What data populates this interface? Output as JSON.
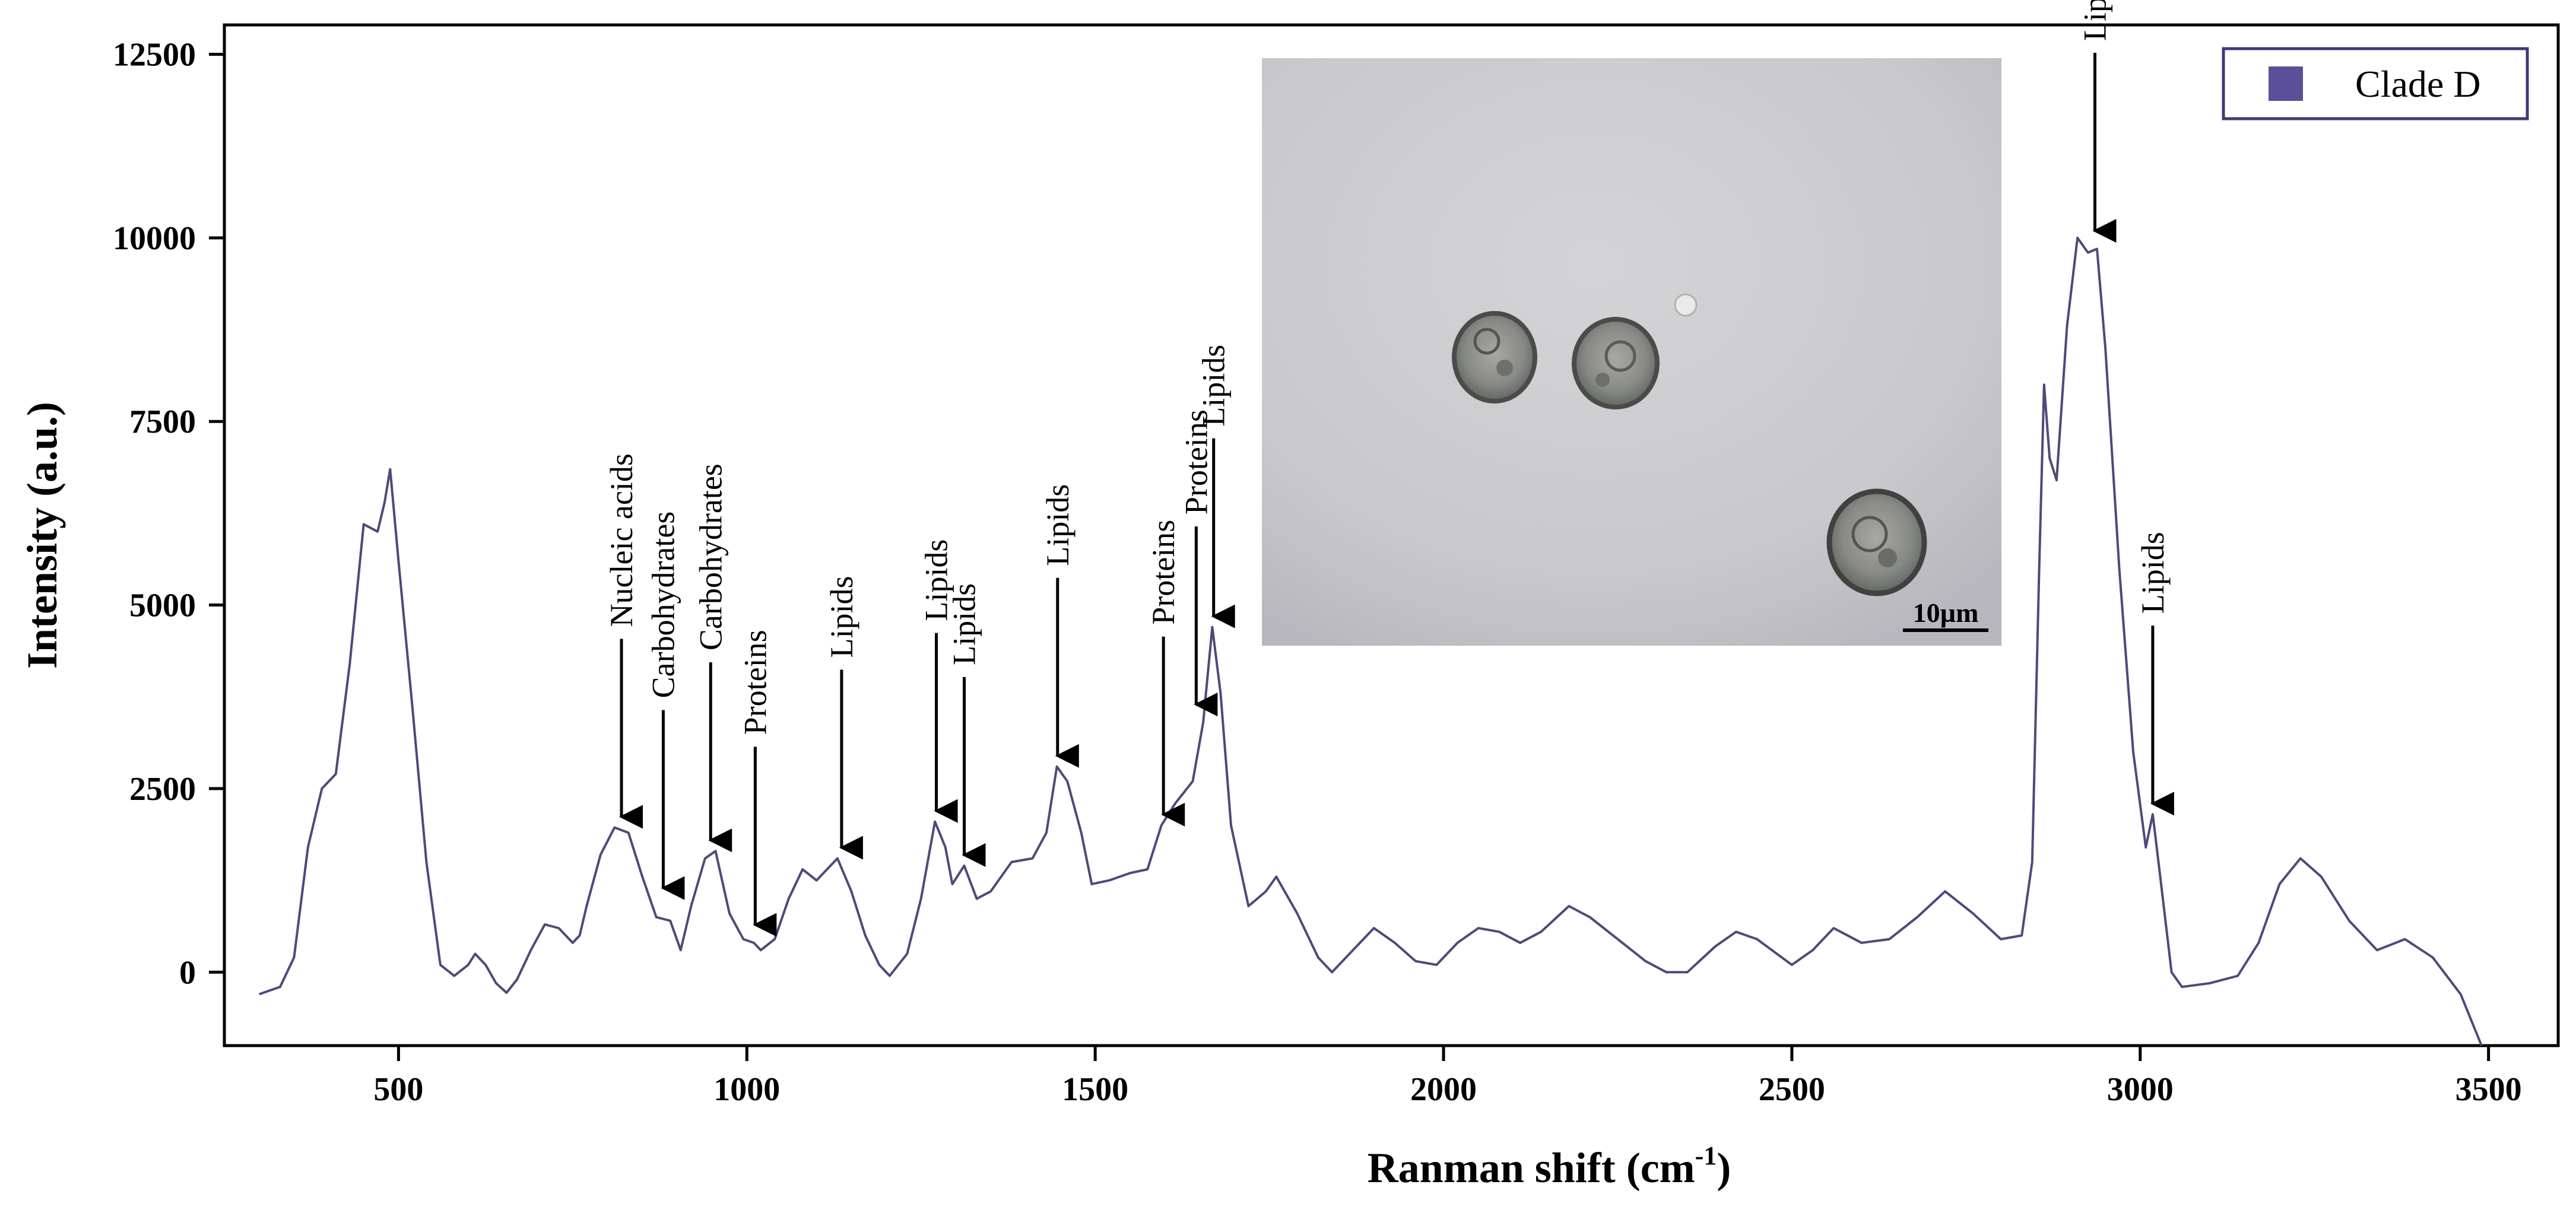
{
  "chart_data": {
    "type": "line",
    "title": "",
    "xlabel": "Ranman shift (cm",
    "xlabel_sup": "-1",
    "xlabel_close": ")",
    "ylabel": "Intensity (a.u.)",
    "xlim": [
      250,
      3600
    ],
    "ylim": [
      -1000,
      12900
    ],
    "x_ticks": [
      500,
      1000,
      1500,
      2000,
      2500,
      3000,
      3500
    ],
    "y_ticks": [
      0,
      2500,
      5000,
      7500,
      10000,
      12500
    ],
    "grid": false,
    "legend": {
      "position": "top-right",
      "entries": [
        {
          "name": "Clade D",
          "color": "#5b4f9a"
        }
      ]
    },
    "series": [
      {
        "name": "Clade D",
        "color": "#4d4a7a",
        "points": [
          [
            300,
            -300
          ],
          [
            330,
            -200
          ],
          [
            350,
            200
          ],
          [
            370,
            1700
          ],
          [
            390,
            2500
          ],
          [
            410,
            2700
          ],
          [
            430,
            4200
          ],
          [
            450,
            6100
          ],
          [
            470,
            6000
          ],
          [
            480,
            6400
          ],
          [
            488,
            6850
          ],
          [
            500,
            5600
          ],
          [
            520,
            3600
          ],
          [
            540,
            1500
          ],
          [
            560,
            100
          ],
          [
            580,
            -50
          ],
          [
            600,
            100
          ],
          [
            610,
            250
          ],
          [
            625,
            100
          ],
          [
            640,
            -150
          ],
          [
            655,
            -280
          ],
          [
            670,
            -100
          ],
          [
            690,
            300
          ],
          [
            710,
            650
          ],
          [
            730,
            600
          ],
          [
            750,
            400
          ],
          [
            760,
            500
          ],
          [
            770,
            900
          ],
          [
            790,
            1600
          ],
          [
            810,
            1970
          ],
          [
            830,
            1900
          ],
          [
            850,
            1300
          ],
          [
            870,
            750
          ],
          [
            890,
            700
          ],
          [
            905,
            300
          ],
          [
            920,
            900
          ],
          [
            940,
            1550
          ],
          [
            955,
            1650
          ],
          [
            975,
            800
          ],
          [
            995,
            450
          ],
          [
            1010,
            400
          ],
          [
            1020,
            300
          ],
          [
            1040,
            450
          ],
          [
            1060,
            1000
          ],
          [
            1080,
            1400
          ],
          [
            1100,
            1250
          ],
          [
            1115,
            1400
          ],
          [
            1130,
            1550
          ],
          [
            1150,
            1100
          ],
          [
            1170,
            500
          ],
          [
            1190,
            100
          ],
          [
            1205,
            -50
          ],
          [
            1230,
            250
          ],
          [
            1250,
            1000
          ],
          [
            1270,
            2050
          ],
          [
            1285,
            1700
          ],
          [
            1295,
            1200
          ],
          [
            1312,
            1450
          ],
          [
            1330,
            1000
          ],
          [
            1350,
            1100
          ],
          [
            1380,
            1500
          ],
          [
            1410,
            1550
          ],
          [
            1430,
            1900
          ],
          [
            1445,
            2800
          ],
          [
            1460,
            2600
          ],
          [
            1480,
            1900
          ],
          [
            1495,
            1200
          ],
          [
            1520,
            1250
          ],
          [
            1550,
            1350
          ],
          [
            1575,
            1400
          ],
          [
            1595,
            2000
          ],
          [
            1615,
            2300
          ],
          [
            1640,
            2600
          ],
          [
            1655,
            3400
          ],
          [
            1668,
            4700
          ],
          [
            1680,
            3800
          ],
          [
            1695,
            2000
          ],
          [
            1720,
            900
          ],
          [
            1745,
            1100
          ],
          [
            1760,
            1300
          ],
          [
            1790,
            800
          ],
          [
            1820,
            200
          ],
          [
            1840,
            0
          ],
          [
            1870,
            300
          ],
          [
            1900,
            600
          ],
          [
            1930,
            400
          ],
          [
            1960,
            150
          ],
          [
            1990,
            100
          ],
          [
            2020,
            400
          ],
          [
            2050,
            600
          ],
          [
            2080,
            550
          ],
          [
            2110,
            400
          ],
          [
            2140,
            550
          ],
          [
            2180,
            900
          ],
          [
            2210,
            750
          ],
          [
            2250,
            450
          ],
          [
            2290,
            150
          ],
          [
            2320,
            0
          ],
          [
            2350,
            0
          ],
          [
            2390,
            350
          ],
          [
            2420,
            550
          ],
          [
            2450,
            450
          ],
          [
            2500,
            100
          ],
          [
            2530,
            300
          ],
          [
            2560,
            600
          ],
          [
            2600,
            400
          ],
          [
            2640,
            450
          ],
          [
            2680,
            750
          ],
          [
            2720,
            1100
          ],
          [
            2760,
            800
          ],
          [
            2800,
            450
          ],
          [
            2830,
            500
          ],
          [
            2845,
            1500
          ],
          [
            2855,
            5500
          ],
          [
            2862,
            8000
          ],
          [
            2870,
            7000
          ],
          [
            2880,
            6700
          ],
          [
            2895,
            8800
          ],
          [
            2910,
            10000
          ],
          [
            2925,
            9800
          ],
          [
            2938,
            9850
          ],
          [
            2950,
            8500
          ],
          [
            2970,
            5500
          ],
          [
            2990,
            3000
          ],
          [
            3008,
            1700
          ],
          [
            3018,
            2150
          ],
          [
            3030,
            1200
          ],
          [
            3045,
            0
          ],
          [
            3060,
            -200
          ],
          [
            3100,
            -150
          ],
          [
            3140,
            -50
          ],
          [
            3170,
            400
          ],
          [
            3200,
            1200
          ],
          [
            3230,
            1550
          ],
          [
            3260,
            1300
          ],
          [
            3300,
            700
          ],
          [
            3340,
            300
          ],
          [
            3380,
            450
          ],
          [
            3420,
            200
          ],
          [
            3460,
            -300
          ],
          [
            3490,
            -1000
          ]
        ]
      }
    ],
    "annotations": [
      {
        "label": "Nucleic acids",
        "x": 820,
        "y": 1970
      },
      {
        "label": "Carbohydrates",
        "x": 880,
        "y": 1000
      },
      {
        "label": "Carbohydrates",
        "x": 948,
        "y": 1650
      },
      {
        "label": "Proteins",
        "x": 1012,
        "y": 500
      },
      {
        "label": "Lipids",
        "x": 1136,
        "y": 1550
      },
      {
        "label": "Lipids",
        "x": 1272,
        "y": 2050
      },
      {
        "label": "Lipids",
        "x": 1312,
        "y": 1450
      },
      {
        "label": "Lipids",
        "x": 1446,
        "y": 2800
      },
      {
        "label": "Proteins",
        "x": 1598,
        "y": 2000
      },
      {
        "label": "Proteins",
        "x": 1645,
        "y": 3500
      },
      {
        "label": "Lipids",
        "x": 1670,
        "y": 4700
      },
      {
        "label": "Lipids",
        "x": 2935,
        "y": 9950
      },
      {
        "label": "Lipids",
        "x": 3018,
        "y": 2150
      }
    ],
    "inset": {
      "description_scale_bar": "10µm"
    }
  }
}
